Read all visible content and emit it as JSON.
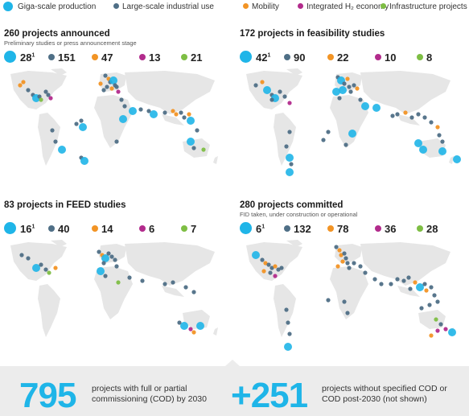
{
  "legend": {
    "items": [
      {
        "label": "Giga-scale production",
        "color": "#1fb5e8",
        "icon": "giga-circle"
      },
      {
        "label": "Large-scale industrial use",
        "color": "#4f6f86",
        "icon": "dot"
      },
      {
        "label": "Mobility",
        "color": "#f29425",
        "icon": "dot"
      },
      {
        "label": "Integrated H₂ economy",
        "color": "#b22b8c",
        "icon": "dot"
      },
      {
        "label": "Infrastructure projects",
        "color": "#7ebe44",
        "icon": "dot"
      }
    ]
  },
  "panels": [
    {
      "title": "260 projects announced",
      "subtitle": "Preliminary studies or press announcement stage",
      "counts": {
        "giga": "28",
        "giga_note": "1",
        "industrial": "151",
        "mobility": "47",
        "integrated": "13",
        "infrastructure": "21"
      }
    },
    {
      "title": "172 projects in feasibility studies",
      "subtitle": "",
      "counts": {
        "giga": "42",
        "giga_note": "1",
        "industrial": "90",
        "mobility": "22",
        "integrated": "10",
        "infrastructure": "8"
      }
    },
    {
      "title": "83 projects in FEED studies",
      "subtitle": "",
      "counts": {
        "giga": "16",
        "giga_note": "1",
        "industrial": "40",
        "mobility": "14",
        "integrated": "6",
        "infrastructure": "7"
      }
    },
    {
      "title": "280 projects committed",
      "subtitle": "FID taken, under construction or operational",
      "counts": {
        "giga": "6",
        "giga_note": "1",
        "industrial": "132",
        "mobility": "78",
        "integrated": "36",
        "infrastructure": "28"
      }
    }
  ],
  "footer": {
    "left_number": "795",
    "left_text": "projects with full or partial commissioning (COD) by 2030",
    "right_number": "+251",
    "right_text": "projects without specified COD or COD post-2030 (not shown)"
  },
  "colors": {
    "giga": "#1fb5e8",
    "industrial": "#4f6f86",
    "mobility": "#f29425",
    "integrated": "#b22b8c",
    "infrastructure": "#7ebe44",
    "land": "#e6e6e6",
    "footer_bg": "#ececec"
  }
}
